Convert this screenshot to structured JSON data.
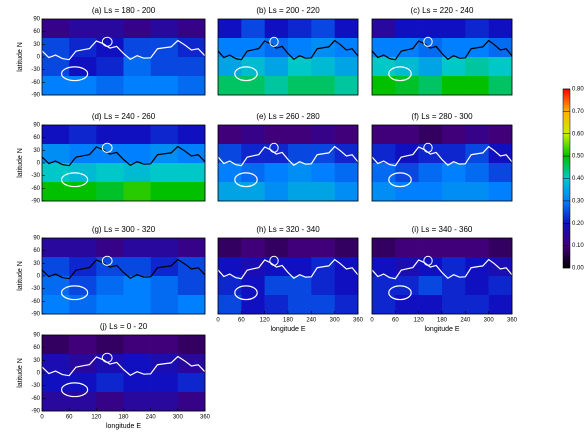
{
  "chart_data": [
    {
      "type": "heatmap",
      "title": "(a) Ls = 180 - 200",
      "xlim": [
        0,
        360
      ],
      "ylim": [
        -90,
        90
      ],
      "yticks": [
        90,
        60,
        30,
        0,
        -30,
        -60,
        -90
      ],
      "ylabel": "latitude N",
      "values": [
        [
          0.12,
          0.15,
          0.15,
          0.12,
          0.15,
          0.12
        ],
        [
          0.25,
          0.22,
          0.2,
          0.25,
          0.25,
          0.22
        ],
        [
          0.25,
          0.2,
          0.22,
          0.28,
          0.25,
          0.25
        ],
        [
          0.3,
          0.3,
          0.28,
          0.3,
          0.3,
          0.28
        ]
      ]
    },
    {
      "type": "heatmap",
      "title": "(b) Ls = 200 - 220",
      "xlim": [
        0,
        360
      ],
      "ylim": [
        -90,
        90
      ],
      "values": [
        [
          0.2,
          0.25,
          0.2,
          0.22,
          0.25,
          0.2
        ],
        [
          0.3,
          0.3,
          0.28,
          0.3,
          0.32,
          0.3
        ],
        [
          0.35,
          0.38,
          0.35,
          0.4,
          0.38,
          0.35
        ],
        [
          0.45,
          0.45,
          0.42,
          0.45,
          0.45,
          0.42
        ]
      ]
    },
    {
      "type": "heatmap",
      "title": "(c) Ls = 220 - 240",
      "xlim": [
        0,
        360
      ],
      "ylim": [
        -90,
        90
      ],
      "values": [
        [
          0.15,
          0.2,
          0.2,
          0.2,
          0.22,
          0.2
        ],
        [
          0.3,
          0.3,
          0.28,
          0.3,
          0.3,
          0.28
        ],
        [
          0.4,
          0.38,
          0.35,
          0.4,
          0.42,
          0.4
        ],
        [
          0.5,
          0.48,
          0.45,
          0.5,
          0.5,
          0.45
        ]
      ]
    },
    {
      "type": "heatmap",
      "title": "(d) Ls = 240 - 260",
      "xlim": [
        0,
        360
      ],
      "ylim": [
        -90,
        90
      ],
      "yticks": [
        90,
        60,
        30,
        0,
        -30,
        -60,
        -90
      ],
      "ylabel": "latitude N",
      "values": [
        [
          0.2,
          0.22,
          0.2,
          0.2,
          0.22,
          0.2
        ],
        [
          0.32,
          0.3,
          0.3,
          0.3,
          0.32,
          0.3
        ],
        [
          0.4,
          0.38,
          0.4,
          0.38,
          0.4,
          0.4
        ],
        [
          0.5,
          0.5,
          0.48,
          0.52,
          0.5,
          0.5
        ]
      ]
    },
    {
      "type": "heatmap",
      "title": "(e) Ls = 260 - 280",
      "xlim": [
        0,
        360
      ],
      "ylim": [
        -90,
        90
      ],
      "values": [
        [
          0.1,
          0.12,
          0.1,
          0.1,
          0.12,
          0.1
        ],
        [
          0.25,
          0.22,
          0.22,
          0.25,
          0.25,
          0.22
        ],
        [
          0.3,
          0.28,
          0.3,
          0.32,
          0.3,
          0.28
        ],
        [
          0.35,
          0.35,
          0.32,
          0.35,
          0.35,
          0.32
        ]
      ]
    },
    {
      "type": "heatmap",
      "title": "(f) Ls = 280 - 300",
      "xlim": [
        0,
        360
      ],
      "ylim": [
        -90,
        90
      ],
      "values": [
        [
          0.1,
          0.1,
          0.08,
          0.1,
          0.12,
          0.1
        ],
        [
          0.22,
          0.2,
          0.22,
          0.22,
          0.25,
          0.2
        ],
        [
          0.28,
          0.25,
          0.28,
          0.3,
          0.28,
          0.25
        ],
        [
          0.32,
          0.3,
          0.3,
          0.32,
          0.32,
          0.3
        ]
      ]
    },
    {
      "type": "heatmap",
      "title": "(g) Ls = 300 - 320",
      "xlim": [
        0,
        360
      ],
      "ylim": [
        -90,
        90
      ],
      "yticks": [
        90,
        60,
        30,
        0,
        -30,
        -60,
        -90
      ],
      "ylabel": "latitude N",
      "values": [
        [
          0.15,
          0.15,
          0.12,
          0.15,
          0.15,
          0.12
        ],
        [
          0.25,
          0.22,
          0.25,
          0.25,
          0.22,
          0.25
        ],
        [
          0.28,
          0.25,
          0.28,
          0.3,
          0.28,
          0.25
        ],
        [
          0.3,
          0.28,
          0.3,
          0.3,
          0.28,
          0.3
        ]
      ]
    },
    {
      "type": "heatmap",
      "title": "(h) Ls = 320 - 340",
      "xlim": [
        0,
        360
      ],
      "ylim": [
        -90,
        90
      ],
      "xticks": [
        0,
        60,
        120,
        180,
        240,
        300,
        360
      ],
      "xlabel": "longitude E",
      "values": [
        [
          0.08,
          0.1,
          0.08,
          0.1,
          0.1,
          0.08
        ],
        [
          0.2,
          0.18,
          0.2,
          0.2,
          0.22,
          0.2
        ],
        [
          0.22,
          0.2,
          0.25,
          0.25,
          0.22,
          0.2
        ],
        [
          0.25,
          0.2,
          0.22,
          0.25,
          0.25,
          0.22
        ]
      ]
    },
    {
      "type": "heatmap",
      "title": "(i) Ls = 340 - 360",
      "xlim": [
        0,
        360
      ],
      "ylim": [
        -90,
        90
      ],
      "xticks": [
        0,
        60,
        120,
        180,
        240,
        300,
        360
      ],
      "xlabel": "longitude E",
      "values": [
        [
          0.08,
          0.1,
          0.1,
          0.1,
          0.1,
          0.08
        ],
        [
          0.2,
          0.18,
          0.2,
          0.22,
          0.2,
          0.18
        ],
        [
          0.22,
          0.22,
          0.25,
          0.22,
          0.2,
          0.22
        ],
        [
          0.22,
          0.2,
          0.2,
          0.22,
          0.22,
          0.2
        ]
      ]
    },
    {
      "type": "heatmap",
      "title": "(j) Ls = 0 - 20",
      "xlim": [
        0,
        360
      ],
      "ylim": [
        -90,
        90
      ],
      "yticks": [
        90,
        60,
        30,
        0,
        -30,
        -60,
        -90
      ],
      "ylabel": "latitude N",
      "xticks": [
        0,
        60,
        120,
        180,
        240,
        300,
        360
      ],
      "xlabel": "longitude E",
      "values": [
        [
          0.08,
          0.1,
          0.08,
          0.1,
          0.1,
          0.08
        ],
        [
          0.18,
          0.15,
          0.18,
          0.2,
          0.18,
          0.15
        ],
        [
          0.2,
          0.2,
          0.22,
          0.2,
          0.2,
          0.22
        ],
        [
          0.15,
          0.15,
          0.12,
          0.15,
          0.15,
          0.12
        ]
      ]
    }
  ],
  "colorbar": {
    "type": "colorbar",
    "lim": [
      0,
      0.8
    ],
    "ticks": [
      {
        "value": 0,
        "label": "0.00"
      },
      {
        "value": 0.1,
        "label": "0.10"
      },
      {
        "value": 0.2,
        "label": "0.20"
      },
      {
        "value": 0.3,
        "label": "0.30"
      },
      {
        "value": 0.4,
        "label": "0.40"
      },
      {
        "value": 0.5,
        "label": "0.50"
      },
      {
        "value": 0.6,
        "label": "0.60"
      },
      {
        "value": 0.7,
        "label": "0.70"
      },
      {
        "value": 0.8,
        "label": "0.80"
      }
    ],
    "colors": [
      "#000000",
      "#40007a",
      "#1010c0",
      "#0080ff",
      "#00c8c8",
      "#00c000",
      "#c8f000",
      "#ffb000",
      "#ff0000"
    ]
  }
}
